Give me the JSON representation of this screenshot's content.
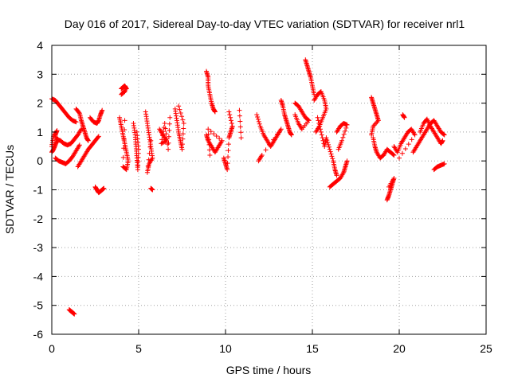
{
  "chart_data": {
    "type": "scatter",
    "title": "Day 016 of 2017, Sidereal Day-to-day VTEC variation (SDTVAR) for receiver nrl1",
    "xlabel": "GPS time / hours",
    "ylabel": "SDTVAR / TECUs",
    "xlim": [
      0,
      25
    ],
    "ylim": [
      -6,
      4
    ],
    "xticks": [
      0,
      5,
      10,
      15,
      20,
      25
    ],
    "yticks": [
      -6,
      -5,
      -4,
      -3,
      -2,
      -1,
      0,
      1,
      2,
      3,
      4
    ],
    "grid": true,
    "marker": "+",
    "color": "#ff0000",
    "series": [
      {
        "name": "SDTVAR",
        "segments": [
          [
            [
              0.0,
              2.15
            ],
            [
              0.2,
              2.1
            ],
            [
              0.4,
              1.95
            ],
            [
              0.6,
              1.8
            ],
            [
              0.8,
              1.65
            ],
            [
              1.0,
              1.5
            ],
            [
              1.2,
              1.4
            ],
            [
              1.4,
              1.35
            ]
          ],
          [
            [
              0.0,
              0.3
            ],
            [
              0.1,
              0.4
            ],
            [
              0.2,
              0.55
            ],
            [
              0.3,
              0.7
            ],
            [
              0.2,
              0.9
            ],
            [
              0.3,
              1.05
            ],
            [
              0.1,
              0.85
            ],
            [
              0.0,
              0.5
            ]
          ],
          [
            [
              0.3,
              0.75
            ],
            [
              0.5,
              0.7
            ],
            [
              0.7,
              0.6
            ],
            [
              0.9,
              0.55
            ],
            [
              1.1,
              0.6
            ],
            [
              1.3,
              0.75
            ],
            [
              1.5,
              0.9
            ],
            [
              1.7,
              1.1
            ]
          ],
          [
            [
              0.2,
              0.1
            ],
            [
              0.4,
              0.0
            ],
            [
              0.6,
              -0.05
            ],
            [
              0.8,
              -0.1
            ],
            [
              1.0,
              0.0
            ],
            [
              1.2,
              0.15
            ],
            [
              1.4,
              0.35
            ],
            [
              1.6,
              0.55
            ]
          ],
          [
            [
              1.5,
              -0.2
            ],
            [
              1.7,
              0.0
            ],
            [
              1.9,
              0.2
            ],
            [
              2.1,
              0.4
            ],
            [
              2.3,
              0.55
            ],
            [
              2.5,
              0.7
            ],
            [
              2.7,
              0.85
            ]
          ],
          [
            [
              1.4,
              1.8
            ],
            [
              1.6,
              1.65
            ],
            [
              1.7,
              1.4
            ],
            [
              1.8,
              1.2
            ],
            [
              1.9,
              1.0
            ],
            [
              2.0,
              0.8
            ],
            [
              2.1,
              0.7
            ]
          ],
          [
            [
              2.2,
              1.5
            ],
            [
              2.4,
              1.35
            ],
            [
              2.6,
              1.3
            ],
            [
              2.7,
              1.4
            ],
            [
              2.8,
              1.6
            ],
            [
              2.9,
              1.75
            ]
          ],
          [
            [
              2.5,
              -0.9
            ],
            [
              2.6,
              -1.0
            ],
            [
              2.7,
              -1.1
            ],
            [
              2.8,
              -1.05
            ],
            [
              2.9,
              -1.0
            ],
            [
              3.0,
              -0.95
            ]
          ],
          [
            [
              1.0,
              -5.15
            ],
            [
              1.1,
              -5.2
            ],
            [
              1.2,
              -5.25
            ],
            [
              1.3,
              -5.3
            ]
          ],
          [
            [
              4.0,
              2.5
            ],
            [
              4.1,
              2.55
            ],
            [
              4.2,
              2.6
            ],
            [
              4.3,
              2.5
            ],
            [
              4.0,
              2.3
            ],
            [
              4.2,
              2.4
            ]
          ],
          [
            [
              3.9,
              1.5
            ],
            [
              4.0,
              1.2
            ],
            [
              4.1,
              0.9
            ],
            [
              4.2,
              0.6
            ],
            [
              4.3,
              0.3
            ],
            [
              4.4,
              0.0
            ],
            [
              4.3,
              -0.3
            ],
            [
              4.1,
              -0.2
            ],
            [
              4.2,
              1.4
            ]
          ],
          [
            [
              4.7,
              1.3
            ],
            [
              4.8,
              0.9
            ],
            [
              4.85,
              0.5
            ],
            [
              4.9,
              0.1
            ],
            [
              4.95,
              -0.3
            ],
            [
              5.0,
              0.4
            ],
            [
              4.9,
              1.0
            ]
          ],
          [
            [
              5.4,
              1.7
            ],
            [
              5.5,
              1.3
            ],
            [
              5.6,
              0.9
            ],
            [
              5.7,
              0.5
            ],
            [
              5.8,
              0.1
            ],
            [
              5.6,
              -0.1
            ],
            [
              5.5,
              -0.4
            ],
            [
              5.7,
              0.7
            ]
          ],
          [
            [
              5.7,
              -0.95
            ],
            [
              5.8,
              -1.0
            ]
          ],
          [
            [
              6.2,
              1.1
            ],
            [
              6.4,
              0.9
            ],
            [
              6.6,
              0.7
            ],
            [
              6.3,
              0.6
            ],
            [
              6.5,
              1.3
            ],
            [
              6.7,
              0.4
            ],
            [
              6.8,
              1.5
            ]
          ],
          [
            [
              7.1,
              1.8
            ],
            [
              7.2,
              1.4
            ],
            [
              7.3,
              1.0
            ],
            [
              7.4,
              0.7
            ],
            [
              7.5,
              0.4
            ],
            [
              7.6,
              1.3
            ],
            [
              7.3,
              1.9
            ]
          ],
          [
            [
              8.9,
              3.1
            ],
            [
              9.0,
              2.9
            ],
            [
              9.0,
              2.6
            ],
            [
              9.1,
              2.3
            ],
            [
              9.2,
              2.0
            ],
            [
              9.3,
              1.8
            ],
            [
              9.4,
              1.7
            ]
          ],
          [
            [
              8.9,
              0.9
            ],
            [
              9.0,
              0.7
            ],
            [
              9.2,
              0.5
            ],
            [
              9.4,
              0.3
            ],
            [
              9.6,
              0.5
            ],
            [
              9.8,
              0.7
            ],
            [
              9.0,
              1.1
            ],
            [
              9.1,
              0.2
            ]
          ],
          [
            [
              9.9,
              0.1
            ],
            [
              10.0,
              -0.1
            ],
            [
              10.1,
              -0.3
            ],
            [
              10.2,
              0.8
            ],
            [
              10.3,
              1.0
            ],
            [
              10.4,
              1.2
            ],
            [
              10.2,
              1.7
            ]
          ],
          [
            [
              10.8,
              1.75
            ],
            [
              10.9,
              0.8
            ]
          ],
          [
            [
              11.8,
              1.6
            ],
            [
              12.0,
              1.2
            ],
            [
              12.2,
              0.9
            ],
            [
              12.4,
              0.7
            ],
            [
              12.6,
              0.5
            ],
            [
              12.8,
              0.7
            ],
            [
              13.0,
              0.9
            ],
            [
              13.2,
              1.1
            ],
            [
              12.1,
              0.2
            ],
            [
              11.9,
              0.0
            ]
          ],
          [
            [
              13.2,
              2.1
            ],
            [
              13.3,
              1.9
            ],
            [
              13.4,
              1.6
            ],
            [
              13.5,
              1.4
            ],
            [
              13.6,
              1.2
            ],
            [
              13.7,
              1.0
            ],
            [
              13.8,
              0.9
            ]
          ],
          [
            [
              14.0,
              2.0
            ],
            [
              14.2,
              1.9
            ],
            [
              14.4,
              1.7
            ],
            [
              14.6,
              1.5
            ],
            [
              14.8,
              1.4
            ],
            [
              14.4,
              1.1
            ],
            [
              14.2,
              1.3
            ],
            [
              14.0,
              1.6
            ]
          ],
          [
            [
              14.6,
              3.5
            ],
            [
              14.7,
              3.3
            ],
            [
              14.8,
              3.1
            ],
            [
              14.9,
              2.9
            ],
            [
              15.0,
              2.6
            ],
            [
              15.1,
              2.3
            ]
          ],
          [
            [
              15.1,
              2.1
            ],
            [
              15.3,
              2.3
            ],
            [
              15.5,
              2.4
            ],
            [
              15.7,
              2.1
            ],
            [
              15.8,
              1.8
            ],
            [
              15.6,
              1.5
            ],
            [
              15.4,
              1.2
            ],
            [
              15.2,
              1.0
            ]
          ],
          [
            [
              15.3,
              1.5
            ],
            [
              15.5,
              1.0
            ],
            [
              15.7,
              0.5
            ],
            [
              15.8,
              0.8
            ],
            [
              16.0,
              0.4
            ],
            [
              16.2,
              0.0
            ],
            [
              16.3,
              -0.3
            ],
            [
              16.4,
              -0.5
            ]
          ],
          [
            [
              16.0,
              -0.9
            ],
            [
              16.2,
              -0.8
            ],
            [
              16.4,
              -0.7
            ],
            [
              16.6,
              -0.6
            ],
            [
              16.8,
              -0.4
            ],
            [
              16.9,
              -0.2
            ],
            [
              17.0,
              0.0
            ]
          ],
          [
            [
              16.4,
              1.0
            ],
            [
              16.6,
              1.2
            ],
            [
              16.8,
              1.3
            ],
            [
              17.0,
              1.25
            ],
            [
              16.7,
              0.7
            ],
            [
              16.5,
              0.4
            ]
          ],
          [
            [
              18.4,
              2.2
            ],
            [
              18.5,
              2.0
            ],
            [
              18.6,
              1.8
            ],
            [
              18.7,
              1.6
            ],
            [
              18.8,
              1.4
            ],
            [
              18.5,
              1.2
            ],
            [
              18.4,
              0.9
            ]
          ],
          [
            [
              18.5,
              0.8
            ],
            [
              18.6,
              0.5
            ],
            [
              18.7,
              0.3
            ],
            [
              18.9,
              0.1
            ],
            [
              19.1,
              0.2
            ],
            [
              19.3,
              0.4
            ],
            [
              19.5,
              0.3
            ],
            [
              19.7,
              0.2
            ]
          ],
          [
            [
              19.3,
              -1.35
            ],
            [
              19.4,
              -1.2
            ],
            [
              19.5,
              -1.0
            ],
            [
              19.6,
              -0.8
            ],
            [
              19.7,
              -0.6
            ],
            [
              19.4,
              -0.9
            ]
          ],
          [
            [
              19.7,
              0.5
            ],
            [
              19.9,
              0.3
            ],
            [
              20.1,
              0.6
            ],
            [
              20.3,
              0.8
            ],
            [
              20.5,
              1.0
            ],
            [
              20.7,
              1.1
            ],
            [
              20.9,
              0.9
            ],
            [
              20.0,
              0.1
            ]
          ],
          [
            [
              20.2,
              1.6
            ],
            [
              20.3,
              1.5
            ]
          ],
          [
            [
              20.8,
              0.3
            ],
            [
              21.0,
              0.5
            ],
            [
              21.2,
              0.7
            ],
            [
              21.4,
              0.9
            ],
            [
              21.6,
              1.1
            ],
            [
              21.8,
              1.3
            ],
            [
              22.0,
              1.4
            ],
            [
              22.2,
              1.2
            ],
            [
              22.4,
              1.0
            ],
            [
              22.6,
              0.9
            ]
          ],
          [
            [
              21.2,
              1.0
            ],
            [
              21.4,
              1.3
            ],
            [
              21.6,
              1.45
            ],
            [
              21.8,
              1.2
            ],
            [
              22.0,
              1.0
            ],
            [
              22.2,
              0.8
            ],
            [
              22.4,
              0.6
            ],
            [
              22.5,
              0.7
            ]
          ],
          [
            [
              22.0,
              -0.3
            ],
            [
              22.2,
              -0.2
            ],
            [
              22.4,
              -0.15
            ],
            [
              22.6,
              -0.1
            ]
          ]
        ]
      }
    ]
  }
}
